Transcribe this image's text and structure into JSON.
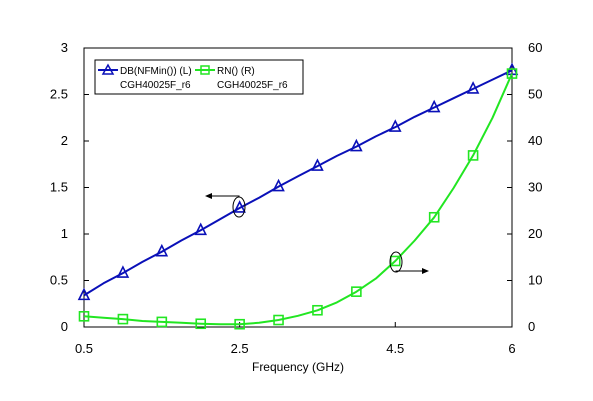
{
  "chart_data": {
    "type": "line",
    "xlabel": "Frequency (GHz)",
    "xlim": [
      0.5,
      6
    ],
    "x_ticks": [
      "0.5",
      "2.5",
      "4.5",
      "6"
    ],
    "y_left": {
      "lim": [
        0,
        3
      ],
      "ticks": [
        "0",
        "0.5",
        "1",
        "1.5",
        "2",
        "2.5",
        "3"
      ]
    },
    "y_right": {
      "lim": [
        0,
        60
      ],
      "ticks": [
        "0",
        "10",
        "20",
        "30",
        "40",
        "50",
        "60"
      ]
    },
    "grid": false,
    "legend_position": "top-left",
    "series": [
      {
        "name": "DB(NFMin()) (L)",
        "sub": "CGH40025F_r6",
        "axis": "left",
        "color": "#0a10b8",
        "marker": "triangle",
        "x": [
          0.5,
          0.75,
          1.0,
          1.25,
          1.5,
          1.75,
          2.0,
          2.25,
          2.5,
          2.75,
          3.0,
          3.25,
          3.5,
          3.75,
          4.0,
          4.25,
          4.5,
          4.75,
          5.0,
          5.25,
          5.5,
          5.75,
          6.0
        ],
        "values": [
          0.34,
          0.47,
          0.58,
          0.7,
          0.81,
          0.93,
          1.04,
          1.16,
          1.28,
          1.39,
          1.51,
          1.62,
          1.73,
          1.84,
          1.94,
          2.05,
          2.15,
          2.26,
          2.36,
          2.46,
          2.56,
          2.66,
          2.76
        ],
        "marker_indices": [
          0,
          2,
          4,
          6,
          8,
          10,
          12,
          14,
          16,
          18,
          20,
          22
        ]
      },
      {
        "name": "RN() (R)",
        "sub": "CGH40025F_r6",
        "axis": "right",
        "color": "#22e622",
        "marker": "square",
        "x": [
          0.5,
          0.75,
          1.0,
          1.25,
          1.5,
          1.75,
          2.0,
          2.25,
          2.5,
          2.75,
          3.0,
          3.25,
          3.5,
          3.75,
          4.0,
          4.25,
          4.5,
          4.75,
          5.0,
          5.25,
          5.5,
          5.75,
          6.0
        ],
        "values": [
          2.3,
          2.0,
          1.7,
          1.3,
          1.1,
          0.9,
          0.7,
          0.6,
          0.6,
          0.9,
          1.5,
          2.4,
          3.6,
          5.3,
          7.6,
          10.4,
          14.2,
          18.6,
          23.6,
          29.9,
          36.9,
          45.0,
          54.5
        ],
        "marker_indices": [
          0,
          2,
          4,
          6,
          8,
          10,
          12,
          14,
          16,
          18,
          20,
          22
        ]
      }
    ]
  }
}
